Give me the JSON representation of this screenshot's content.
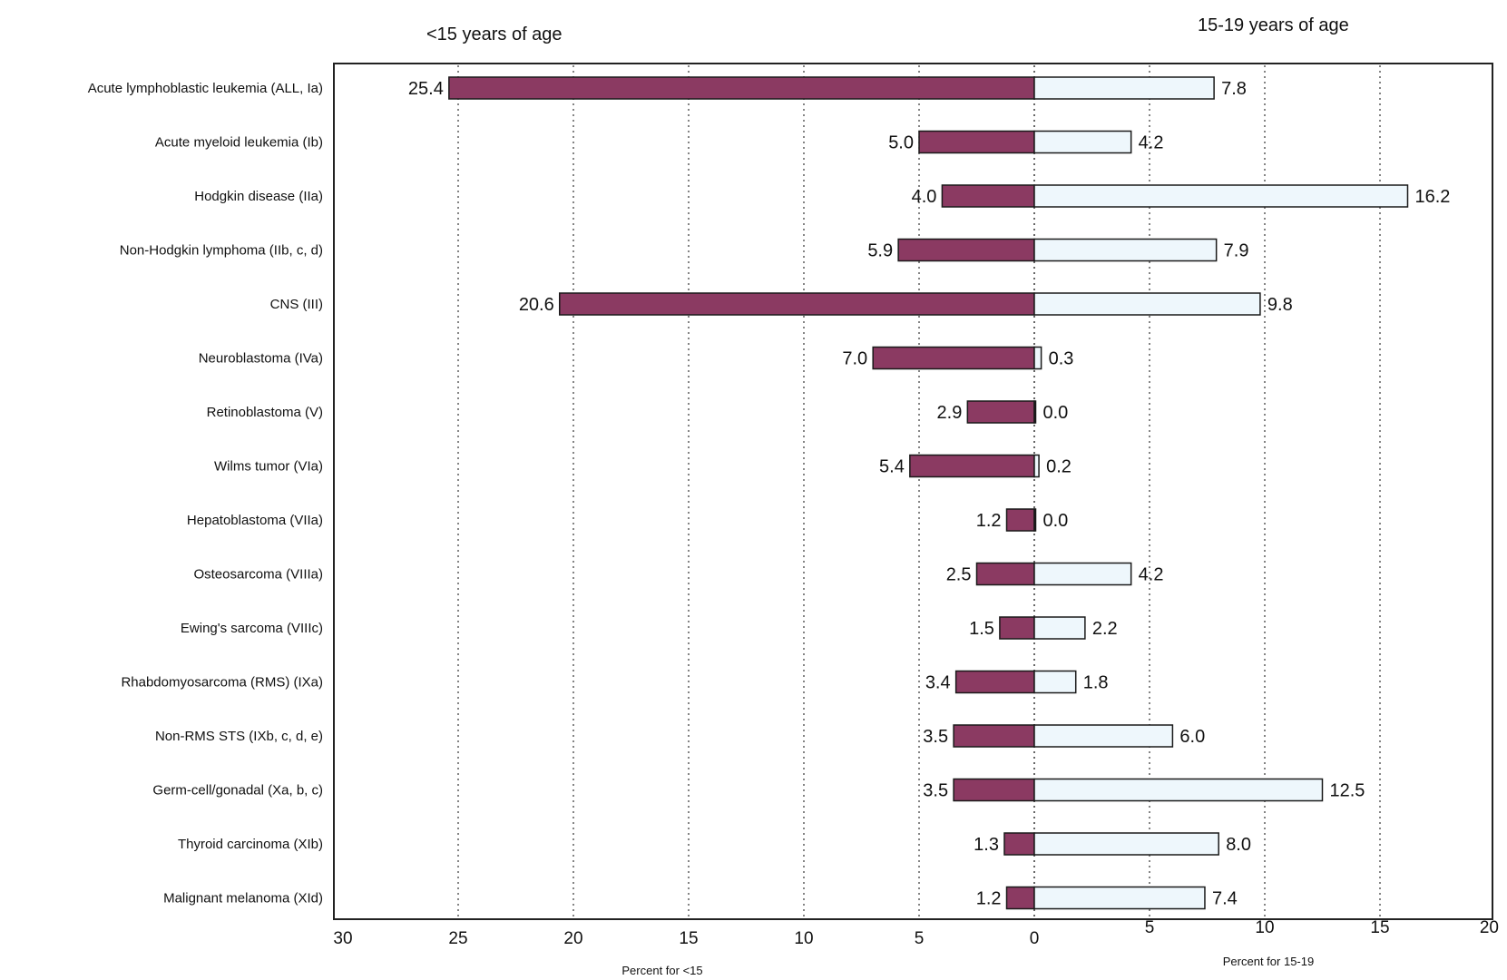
{
  "chart_data": {
    "type": "bar",
    "subtype": "back-to-back horizontal bar",
    "left_heading": "<15 years of age",
    "right_heading": "15-19 years of age",
    "left_axis_label": "Percent for <15",
    "right_axis_label": "Percent for 15-19",
    "categories": [
      "Acute lymphoblastic leukemia (ALL, Ia)",
      "Acute myeloid leukemia (Ib)",
      "Hodgkin disease (IIa)",
      "Non-Hodgkin lymphoma (IIb, c, d)",
      "CNS (III)",
      "Neuroblastoma (IVa)",
      "Retinoblastoma (V)",
      "Wilms tumor (VIa)",
      "Hepatoblastoma (VIIa)",
      "Osteosarcoma (VIIIa)",
      "Ewing's sarcoma (VIIIc)",
      "Rhabdomyosarcoma (RMS) (IXa)",
      "Non-RMS STS (IXb, c, d, e)",
      "Germ-cell/gonadal (Xa, b, c)",
      "Thyroid carcinoma (XIb)",
      "Malignant melanoma (XId)"
    ],
    "series": [
      {
        "name": "<15 years of age",
        "side": "left",
        "color": "#8b3a62",
        "values": [
          25.4,
          5.0,
          4.0,
          5.9,
          20.6,
          7.0,
          2.9,
          5.4,
          1.2,
          2.5,
          1.5,
          3.4,
          3.5,
          3.5,
          1.3,
          1.2
        ],
        "labels": [
          "25.4",
          "5.0",
          "4.0",
          "5.9",
          "20.6",
          "7.0",
          "2.9",
          "5.4",
          "1.2",
          "2.5",
          "1.5",
          "3.4",
          "3.5",
          "3.5",
          "1.3",
          "1.2"
        ]
      },
      {
        "name": "15-19 years of age",
        "side": "right",
        "color": "#eef7fc",
        "values": [
          7.8,
          4.2,
          16.2,
          7.9,
          9.8,
          0.3,
          0.0,
          0.2,
          0.0,
          4.2,
          2.2,
          1.8,
          6.0,
          12.5,
          8.0,
          7.4
        ],
        "labels": [
          "7.8",
          "4.2",
          "16.2",
          "7.9",
          "9.8",
          "0.3",
          "0.0",
          "0.2",
          "0.0",
          "4.2",
          "2.2",
          "1.8",
          "6.0",
          "12.5",
          "8.0",
          "7.4"
        ]
      }
    ],
    "left_xlim": [
      30,
      0
    ],
    "right_xlim": [
      0,
      20
    ],
    "left_ticks": [
      "30",
      "25",
      "20",
      "15",
      "10",
      "5",
      "0"
    ],
    "right_ticks": [
      "5",
      "10",
      "15",
      "20"
    ],
    "grid": "vertical dotted",
    "legend": "none"
  }
}
